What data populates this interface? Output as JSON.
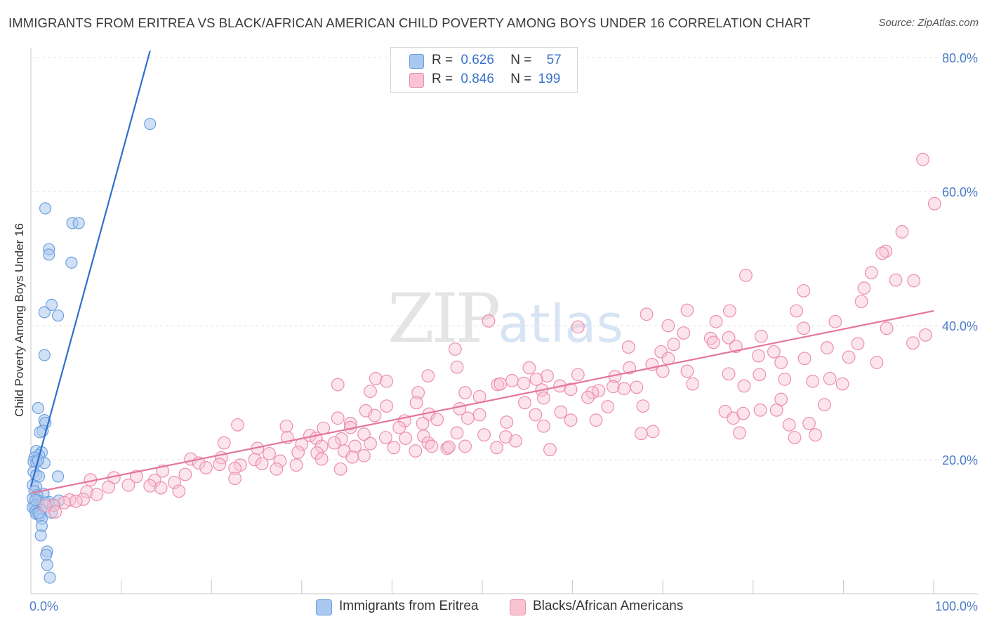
{
  "title": "IMMIGRANTS FROM ERITREA VS BLACK/AFRICAN AMERICAN CHILD POVERTY AMONG BOYS UNDER 16 CORRELATION CHART",
  "source": "Source: ZipAtlas.com",
  "watermark": {
    "zip": "ZIP",
    "atlas": "atlas"
  },
  "legend": {
    "rows": [
      {
        "r_label": "R =",
        "r_value": "0.626",
        "n_label": "N =",
        "n_value": "57",
        "color": "#a9c8f0",
        "border": "#6f9fdc"
      },
      {
        "r_label": "R =",
        "r_value": "0.846",
        "n_label": "N =",
        "n_value": "199",
        "color": "#f9c3d4",
        "border": "#ec8fab"
      }
    ]
  },
  "bottom_legend": [
    {
      "label": "Immigrants from Eritrea",
      "color": "#a9c8f0",
      "border": "#6f9fdc"
    },
    {
      "label": "Blacks/African Americans",
      "color": "#f9c3d4",
      "border": "#ec8fab"
    }
  ],
  "chart_data": {
    "type": "scatter",
    "title": "IMMIGRANTS FROM ERITREA VS BLACK/AFRICAN AMERICAN CHILD POVERTY AMONG BOYS UNDER 16 CORRELATION CHART",
    "xlabel": "",
    "ylabel": "Child Poverty Among Boys Under 16",
    "xlim": [
      0,
      100
    ],
    "ylim": [
      0,
      82
    ],
    "x_tick_labels": [
      {
        "value": 0,
        "label": "0.0%"
      },
      {
        "value": 100,
        "label": "100.0%"
      }
    ],
    "y_tick_labels": [
      {
        "value": 20,
        "label": "20.0%"
      },
      {
        "value": 40,
        "label": "40.0%"
      },
      {
        "value": 60,
        "label": "60.0%"
      },
      {
        "value": 80,
        "label": "80.0%"
      }
    ],
    "grid": true,
    "series": [
      {
        "name": "Immigrants from Eritrea",
        "color": "#a9c8f0",
        "edge": "#6f9fdc",
        "trend": {
          "x0": 0,
          "y0": 16,
          "x1": 13.2,
          "y1": 81
        },
        "trend_color": "#2f6fcf",
        "points": [
          [
            13.2,
            70.1
          ],
          [
            1.6,
            57.5
          ],
          [
            4.6,
            55.3
          ],
          [
            5.3,
            55.3
          ],
          [
            2.0,
            51.4
          ],
          [
            2.0,
            50.6
          ],
          [
            4.5,
            49.4
          ],
          [
            2.3,
            43.1
          ],
          [
            1.5,
            42.0
          ],
          [
            3.0,
            41.5
          ],
          [
            1.5,
            35.6
          ],
          [
            0.8,
            27.7
          ],
          [
            1.5,
            25.9
          ],
          [
            1.6,
            25.5
          ],
          [
            1.3,
            24.3
          ],
          [
            1.0,
            24.1
          ],
          [
            0.6,
            21.3
          ],
          [
            1.2,
            21.1
          ],
          [
            0.9,
            20.7
          ],
          [
            0.4,
            20.3
          ],
          [
            0.3,
            19.7
          ],
          [
            1.5,
            19.5
          ],
          [
            0.6,
            19.6
          ],
          [
            0.8,
            19.9
          ],
          [
            0.3,
            18.2
          ],
          [
            0.6,
            17.7
          ],
          [
            0.9,
            17.5
          ],
          [
            3.0,
            17.5
          ],
          [
            0.2,
            16.2
          ],
          [
            0.6,
            15.9
          ],
          [
            0.4,
            15.3
          ],
          [
            1.4,
            14.9
          ],
          [
            0.7,
            14.7
          ],
          [
            0.2,
            14.2
          ],
          [
            0.8,
            13.9
          ],
          [
            2.0,
            13.7
          ],
          [
            3.1,
            13.9
          ],
          [
            1.6,
            13.6
          ],
          [
            0.6,
            13.3
          ],
          [
            0.4,
            13.1
          ],
          [
            2.6,
            13.2
          ],
          [
            0.2,
            12.9
          ],
          [
            1.1,
            12.5
          ],
          [
            0.5,
            12.3
          ],
          [
            0.8,
            12.1
          ],
          [
            2.3,
            12.1
          ],
          [
            0.6,
            11.9
          ],
          [
            1.0,
            11.6
          ],
          [
            1.2,
            11.2
          ],
          [
            1.2,
            10.1
          ],
          [
            1.1,
            8.7
          ],
          [
            1.8,
            6.3
          ],
          [
            1.7,
            5.8
          ],
          [
            1.8,
            4.3
          ],
          [
            2.1,
            2.4
          ],
          [
            0.9,
            12.0
          ],
          [
            0.5,
            14.0
          ]
        ]
      },
      {
        "name": "Blacks/African Americans",
        "color": "#f9c3d4",
        "edge": "#ec8fab",
        "trend": {
          "x0": 0,
          "y0": 15.0,
          "x1": 100,
          "y1": 42.2
        },
        "trend_color": "#e4769c",
        "points": [
          [
            98.8,
            64.8
          ],
          [
            100.1,
            58.2
          ],
          [
            96.5,
            54.0
          ],
          [
            94.7,
            51.1
          ],
          [
            94.3,
            50.8
          ],
          [
            93.1,
            47.9
          ],
          [
            95.8,
            46.8
          ],
          [
            97.8,
            46.7
          ],
          [
            92.3,
            45.6
          ],
          [
            79.2,
            47.5
          ],
          [
            85.6,
            45.2
          ],
          [
            92.0,
            43.6
          ],
          [
            72.7,
            42.3
          ],
          [
            77.4,
            42.2
          ],
          [
            84.8,
            42.2
          ],
          [
            68.2,
            41.7
          ],
          [
            70.6,
            40.0
          ],
          [
            89.1,
            40.6
          ],
          [
            75.9,
            40.6
          ],
          [
            50.7,
            40.7
          ],
          [
            60.6,
            39.8
          ],
          [
            85.6,
            39.6
          ],
          [
            94.8,
            39.6
          ],
          [
            99.1,
            38.6
          ],
          [
            72.3,
            38.9
          ],
          [
            80.9,
            38.4
          ],
          [
            71.2,
            37.2
          ],
          [
            75.3,
            38.1
          ],
          [
            77.3,
            38.2
          ],
          [
            75.6,
            37.5
          ],
          [
            78.1,
            36.9
          ],
          [
            91.6,
            37.3
          ],
          [
            97.7,
            37.4
          ],
          [
            82.3,
            36.1
          ],
          [
            88.2,
            36.7
          ],
          [
            66.2,
            36.8
          ],
          [
            69.8,
            36.1
          ],
          [
            80.6,
            35.5
          ],
          [
            85.7,
            35.1
          ],
          [
            90.6,
            35.3
          ],
          [
            70.6,
            35.1
          ],
          [
            47.0,
            36.5
          ],
          [
            93.7,
            34.5
          ],
          [
            68.8,
            34.2
          ],
          [
            83.1,
            34.5
          ],
          [
            66.3,
            33.7
          ],
          [
            70.0,
            33.2
          ],
          [
            72.7,
            33.2
          ],
          [
            77.3,
            32.8
          ],
          [
            80.7,
            32.7
          ],
          [
            38.2,
            32.1
          ],
          [
            44.0,
            32.5
          ],
          [
            47.2,
            33.8
          ],
          [
            57.2,
            32.5
          ],
          [
            60.6,
            32.7
          ],
          [
            64.7,
            32.4
          ],
          [
            55.2,
            33.7
          ],
          [
            67.1,
            30.8
          ],
          [
            73.3,
            31.3
          ],
          [
            79.0,
            31.0
          ],
          [
            83.5,
            32.0
          ],
          [
            86.6,
            31.7
          ],
          [
            88.5,
            32.1
          ],
          [
            89.9,
            31.3
          ],
          [
            34.0,
            31.2
          ],
          [
            39.4,
            31.7
          ],
          [
            51.7,
            31.2
          ],
          [
            53.3,
            31.8
          ],
          [
            54.6,
            31.4
          ],
          [
            56.0,
            32.0
          ],
          [
            58.6,
            31.0
          ],
          [
            59.8,
            30.5
          ],
          [
            62.9,
            30.3
          ],
          [
            64.5,
            30.9
          ],
          [
            48.1,
            30.0
          ],
          [
            52.0,
            31.3
          ],
          [
            56.6,
            30.4
          ],
          [
            62.2,
            30.0
          ],
          [
            65.7,
            30.6
          ],
          [
            37.6,
            30.2
          ],
          [
            42.9,
            30.0
          ],
          [
            49.7,
            29.4
          ],
          [
            61.7,
            29.3
          ],
          [
            56.8,
            29.2
          ],
          [
            87.9,
            28.2
          ],
          [
            83.1,
            29.0
          ],
          [
            39.4,
            28.0
          ],
          [
            42.7,
            28.5
          ],
          [
            47.5,
            27.6
          ],
          [
            37.1,
            27.3
          ],
          [
            58.7,
            27.1
          ],
          [
            63.9,
            27.9
          ],
          [
            67.8,
            28.0
          ],
          [
            54.7,
            28.5
          ],
          [
            44.1,
            26.8
          ],
          [
            48.4,
            26.2
          ],
          [
            34.0,
            26.2
          ],
          [
            38.1,
            26.6
          ],
          [
            76.9,
            27.2
          ],
          [
            80.8,
            27.4
          ],
          [
            82.6,
            27.4
          ],
          [
            77.8,
            26.2
          ],
          [
            35.4,
            25.4
          ],
          [
            41.4,
            25.8
          ],
          [
            45.0,
            26.0
          ],
          [
            49.7,
            26.7
          ],
          [
            55.9,
            26.7
          ],
          [
            59.8,
            25.9
          ],
          [
            62.6,
            25.9
          ],
          [
            84.0,
            25.2
          ],
          [
            86.2,
            25.4
          ],
          [
            22.9,
            25.2
          ],
          [
            28.3,
            25.0
          ],
          [
            32.4,
            24.7
          ],
          [
            30.9,
            23.6
          ],
          [
            35.4,
            24.8
          ],
          [
            40.8,
            24.8
          ],
          [
            43.4,
            25.4
          ],
          [
            47.2,
            24.0
          ],
          [
            52.7,
            25.6
          ],
          [
            56.8,
            25.0
          ],
          [
            78.9,
            26.9
          ],
          [
            68.9,
            24.2
          ],
          [
            78.5,
            24.0
          ],
          [
            86.9,
            23.7
          ],
          [
            84.6,
            23.3
          ],
          [
            67.6,
            23.9
          ],
          [
            31.6,
            23.2
          ],
          [
            34.4,
            23.1
          ],
          [
            36.9,
            23.8
          ],
          [
            39.3,
            23.3
          ],
          [
            41.5,
            23.2
          ],
          [
            43.5,
            23.5
          ],
          [
            50.2,
            23.7
          ],
          [
            52.6,
            23.4
          ],
          [
            28.4,
            23.3
          ],
          [
            33.6,
            22.5
          ],
          [
            37.6,
            22.4
          ],
          [
            21.4,
            22.5
          ],
          [
            25.1,
            21.7
          ],
          [
            30.0,
            22.3
          ],
          [
            32.2,
            22.0
          ],
          [
            35.9,
            22.0
          ],
          [
            40.2,
            21.8
          ],
          [
            44.0,
            22.5
          ],
          [
            46.1,
            21.7
          ],
          [
            48.1,
            22.0
          ],
          [
            51.6,
            21.8
          ],
          [
            53.7,
            22.8
          ],
          [
            57.5,
            21.5
          ],
          [
            26.4,
            20.9
          ],
          [
            29.6,
            21.1
          ],
          [
            31.7,
            21.0
          ],
          [
            34.7,
            21.3
          ],
          [
            36.9,
            20.6
          ],
          [
            42.6,
            21.3
          ],
          [
            44.4,
            22.0
          ],
          [
            46.3,
            21.9
          ],
          [
            17.7,
            20.1
          ],
          [
            21.1,
            20.3
          ],
          [
            24.8,
            20.0
          ],
          [
            27.6,
            19.8
          ],
          [
            32.2,
            20.1
          ],
          [
            35.6,
            20.4
          ],
          [
            18.6,
            19.5
          ],
          [
            20.9,
            19.3
          ],
          [
            23.2,
            19.2
          ],
          [
            25.6,
            19.4
          ],
          [
            27.2,
            18.6
          ],
          [
            19.4,
            18.8
          ],
          [
            22.6,
            18.7
          ],
          [
            29.4,
            19.2
          ],
          [
            34.3,
            18.6
          ],
          [
            14.6,
            18.3
          ],
          [
            17.1,
            17.8
          ],
          [
            22.6,
            17.2
          ],
          [
            6.6,
            17.0
          ],
          [
            9.2,
            17.3
          ],
          [
            11.7,
            17.5
          ],
          [
            13.7,
            16.9
          ],
          [
            15.9,
            16.6
          ],
          [
            8.6,
            15.9
          ],
          [
            10.8,
            16.2
          ],
          [
            13.2,
            16.1
          ],
          [
            14.4,
            15.8
          ],
          [
            16.4,
            15.3
          ],
          [
            6.2,
            15.2
          ],
          [
            5.8,
            14.1
          ],
          [
            4.3,
            14.0
          ],
          [
            5.0,
            13.8
          ],
          [
            3.7,
            13.6
          ],
          [
            2.5,
            13.2
          ],
          [
            1.6,
            13.1
          ],
          [
            2.7,
            12.2
          ],
          [
            7.3,
            14.8
          ]
        ]
      }
    ]
  }
}
